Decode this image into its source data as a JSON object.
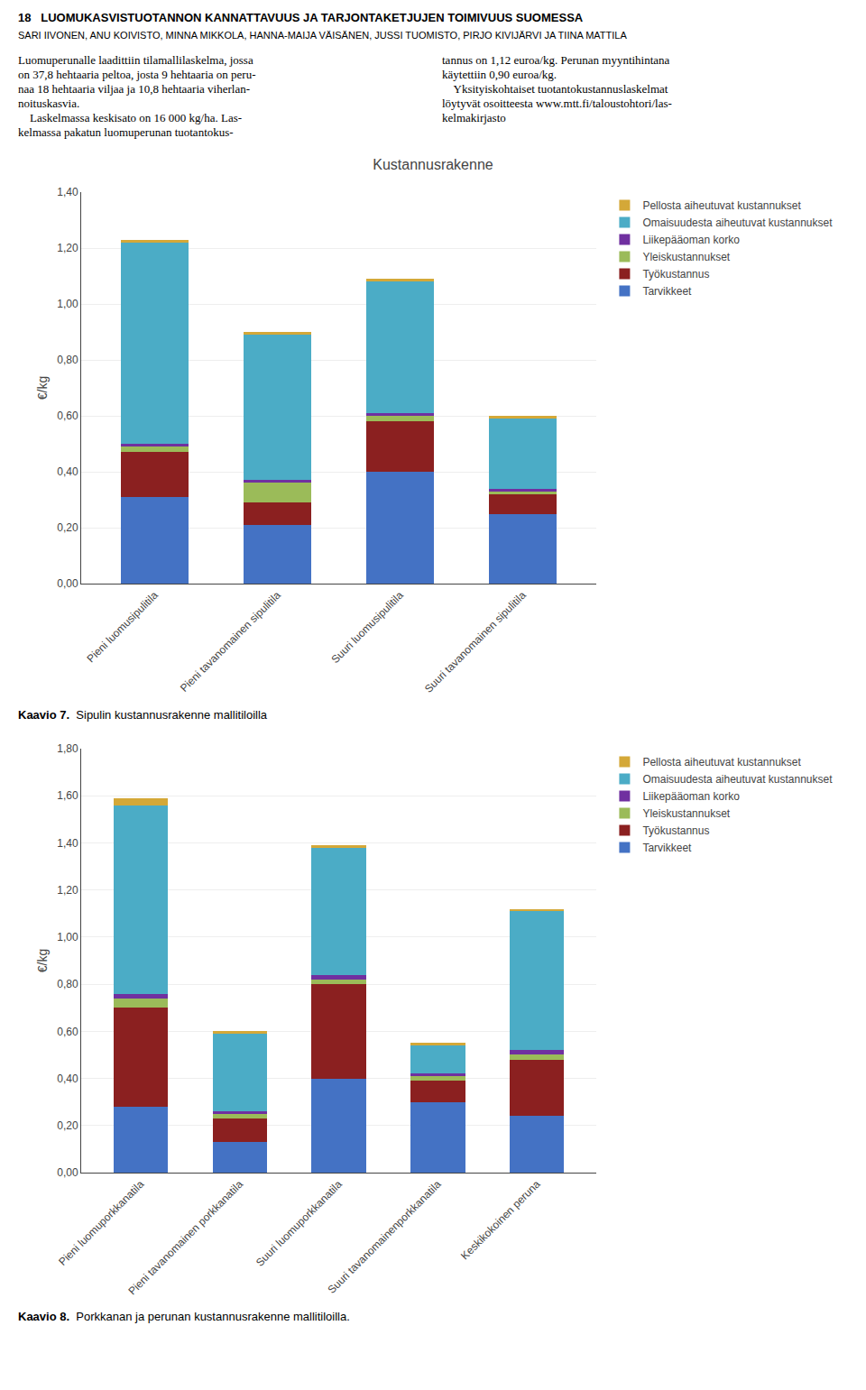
{
  "title": "18   LUOMUKASVISTUOTANNON KANNATTAVUUS JA TARJONTAKETJUJEN TOIMIVUUS SUOMESSA",
  "subtitle": "SARI IIVONEN, ANU KOIVISTO, MINNA MIKKOLA, HANNA-MAIJA VÄISÄNEN, JUSSI TUOMISTO, PIRJO KIVIJÄRVI JA TIINA MATTILA",
  "annotations": [
    [
      "Luomuperunalle laadittiin tilamallilaskelma, jossa",
      "on 37,8 hehtaaria peltoa, josta 9 hehtaaria on peru-",
      "naa 18 hehtaaria viljaa ja 10,8 hehtaaria viherlan-",
      "noituskasvia.",
      "    Laskelmassa keskisato on 16 000 kg/ha. Las-",
      "kelmassa pakatun luomuperunan tuotantokus-"
    ],
    [
      "tannus on 1,12 euroa/kg. Perunan myyntihintana",
      "käytettiin 0,90 euroa/kg.",
      "    Yksityiskohtaiset tuotantokustannuslaskelmat",
      "löytyvät osoitteesta www.mtt.fi/taloustohtori/las-",
      "kelmakirjasto"
    ]
  ],
  "chart_data": [
    {
      "type": "bar",
      "stacked": true,
      "title": "Kustannusrakenne",
      "ylabel": "€/kg",
      "categories": [
        "Pieni luomusipulitila",
        "Pieni tavanomainen sipulitila",
        "Suuri luomusipulitila",
        "Suuri tavanomainen sipulitila"
      ],
      "series": [
        {
          "name": "Tarvikkeet",
          "color": "#4472C4",
          "values": [
            0.31,
            0.21,
            0.4,
            0.25
          ]
        },
        {
          "name": "Työkustannus",
          "color": "#8B2020",
          "values": [
            0.16,
            0.08,
            0.18,
            0.07
          ]
        },
        {
          "name": "Yleiskustannukset",
          "color": "#9BBB59",
          "values": [
            0.02,
            0.07,
            0.02,
            0.01
          ]
        },
        {
          "name": "Liikepääoman korko",
          "color": "#7030A0",
          "values": [
            0.01,
            0.01,
            0.01,
            0.01
          ]
        },
        {
          "name": "Omaisuudesta aiheutuvat kustannukset",
          "color": "#4BACC6",
          "values": [
            0.72,
            0.52,
            0.47,
            0.25
          ]
        },
        {
          "name": "Pellosta aiheutuvat kustannukset",
          "color": "#D4A838",
          "values": [
            0.01,
            0.01,
            0.01,
            0.01
          ]
        }
      ],
      "ylim": [
        0,
        1.4
      ],
      "yticks": [
        {
          "value": 0.0,
          "label": "0,00"
        },
        {
          "value": 0.2,
          "label": "0,20"
        },
        {
          "value": 0.4,
          "label": "0,40"
        },
        {
          "value": 0.6,
          "label": "0,60"
        },
        {
          "value": 0.8,
          "label": "0,80"
        },
        {
          "value": 1.0,
          "label": "1,00"
        },
        {
          "value": 1.2,
          "label": "1,20"
        },
        {
          "value": 1.4,
          "label": "1,40"
        }
      ],
      "grid": true,
      "legend": "right",
      "annotations": [
        "Kaavio 7.",
        "  Sipulin kustannusrakenne mallitiloilla"
      ]
    },
    {
      "type": "bar",
      "stacked": true,
      "ylabel": "€/kg",
      "categories": [
        "Pieni luomuporkkanatila",
        "Pieni tavanomainen porkkanatila",
        "Suuri luomuporkkanatila",
        "Suuri tavanomainenporkkanatila",
        "Keskikokoinen peruna"
      ],
      "series": [
        {
          "name": "Tarvikkeet",
          "color": "#4472C4",
          "values": [
            0.28,
            0.13,
            0.4,
            0.3,
            0.24
          ]
        },
        {
          "name": "Työkustannus",
          "color": "#8B2020",
          "values": [
            0.42,
            0.1,
            0.4,
            0.09,
            0.24
          ]
        },
        {
          "name": "Yleiskustannukset",
          "color": "#9BBB59",
          "values": [
            0.04,
            0.02,
            0.02,
            0.02,
            0.02
          ]
        },
        {
          "name": "Liikepääoman korko",
          "color": "#7030A0",
          "values": [
            0.02,
            0.01,
            0.02,
            0.01,
            0.02
          ]
        },
        {
          "name": "Omaisuudesta aiheutuvat kustannukset",
          "color": "#4BACC6",
          "values": [
            0.8,
            0.33,
            0.54,
            0.12,
            0.59
          ]
        },
        {
          "name": "Pellosta aiheutuvat kustannukset",
          "color": "#D4A838",
          "values": [
            0.03,
            0.01,
            0.01,
            0.01,
            0.01
          ]
        }
      ],
      "ylim": [
        0,
        1.8
      ],
      "yticks": [
        {
          "value": 0.0,
          "label": "0,00"
        },
        {
          "value": 0.2,
          "label": "0,20"
        },
        {
          "value": 0.4,
          "label": "0,40"
        },
        {
          "value": 0.6,
          "label": "0,60"
        },
        {
          "value": 0.8,
          "label": "0,80"
        },
        {
          "value": 1.0,
          "label": "1,00"
        },
        {
          "value": 1.2,
          "label": "1,20"
        },
        {
          "value": 1.4,
          "label": "1,40"
        },
        {
          "value": 1.6,
          "label": "1,60"
        },
        {
          "value": 1.8,
          "label": "1,80"
        }
      ],
      "grid": true,
      "legend": "right",
      "annotations": [
        "Kaavio 8.",
        "  Porkkanan ja perunan kustannusrakenne mallitiloilla."
      ]
    }
  ]
}
